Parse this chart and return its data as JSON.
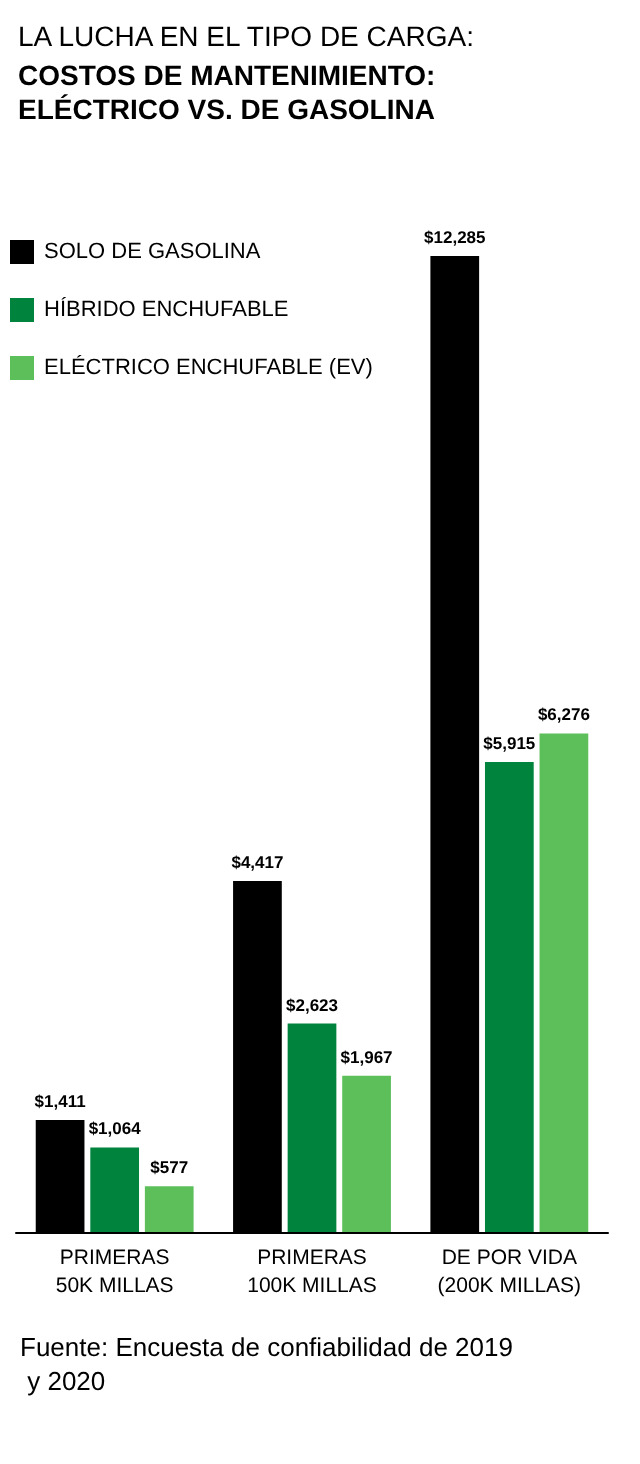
{
  "chart_data": {
    "type": "bar",
    "title": "LA LUCHA EN EL TIPO DE CARGA:",
    "subtitle": "COSTOS DE MANTENIMIENTO:\nELÉCTRICO VS. DE GASOLINA",
    "categories": [
      "PRIMERAS\n50K MILLAS",
      "PRIMERAS\n100K MILLAS",
      "DE POR VIDA\n(200K MILLAS)"
    ],
    "series": [
      {
        "name": "SOLO DE GASOLINA",
        "color": "#000000",
        "values": [
          1411,
          4417,
          12285
        ],
        "value_labels": [
          "$1,411",
          "$4,417",
          "$12,285"
        ]
      },
      {
        "name": "HÍBRIDO ENCHUFABLE",
        "color": "#00843d",
        "values": [
          1064,
          2623,
          5915
        ],
        "value_labels": [
          "$1,064",
          "$2,623",
          "$5,915"
        ]
      },
      {
        "name": "ELÉCTRICO ENCHUFABLE (EV)",
        "color": "#5cbf5a",
        "values": [
          577,
          1967,
          6276
        ],
        "value_labels": [
          "$577",
          "$1,967",
          "$6,276"
        ]
      }
    ],
    "legend": "top left",
    "annotations": [
      "Fuente: Encuesta de confiabilidad de 2019 y 2020"
    ]
  }
}
